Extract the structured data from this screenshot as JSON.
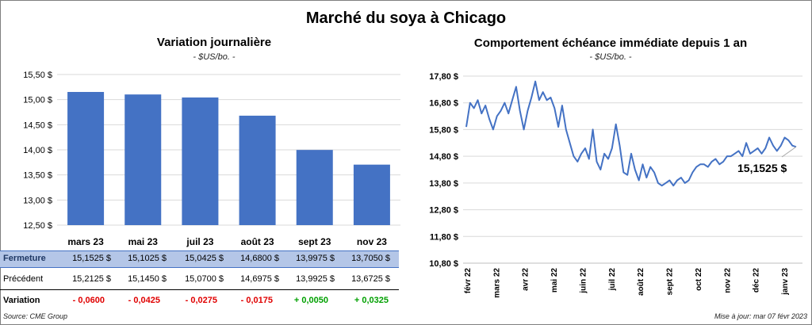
{
  "title": "Marché du soya à Chicago",
  "left": {
    "title": "Variation  journalière",
    "unit": "- $US/bo. -",
    "table": {
      "row_labels": [
        "Fermeture",
        "Précédent",
        "Variation"
      ],
      "fermeture": [
        "15,1525  $",
        "15,1025  $",
        "15,0425  $",
        "14,6800  $",
        "13,9975  $",
        "13,7050  $"
      ],
      "precedent": [
        "15,2125  $",
        "15,1450  $",
        "15,0700  $",
        "14,6975  $",
        "13,9925  $",
        "13,6725  $"
      ],
      "variation": [
        "- 0,0600",
        "- 0,0425",
        "- 0,0275",
        "- 0,0175",
        "+ 0,0050",
        "+ 0,0325"
      ],
      "variation_colors": [
        "#e00000",
        "#e00000",
        "#e00000",
        "#e00000",
        "#00a000",
        "#00a000"
      ]
    }
  },
  "right": {
    "title": "Comportement  échéance immédiate depuis 1 an",
    "unit": "- $US/bo. -",
    "last_label": "15,1525 $"
  },
  "footer": {
    "source": "Source: CME Group",
    "updated": "Mise à jour: mar 07 févr 2023"
  },
  "colors": {
    "bar": "#4472c4",
    "line": "#4472c4",
    "grid": "#d9d9d9"
  },
  "chart_data": [
    {
      "type": "bar",
      "categories": [
        "mars 23",
        "mai 23",
        "juil 23",
        "août 23",
        "sept 23",
        "nov 23"
      ],
      "values": [
        15.1525,
        15.1025,
        15.0425,
        14.68,
        13.9975,
        13.705
      ],
      "ylim": [
        12.5,
        15.5
      ],
      "yticks": [
        "12,50 $",
        "13,00 $",
        "13,50 $",
        "14,00 $",
        "14,50 $",
        "15,00 $",
        "15,50 $"
      ],
      "grid": true
    },
    {
      "type": "line",
      "x_labels": [
        "févr 22",
        "mars 22",
        "avr 22",
        "mai 22",
        "juin 22",
        "juil 22",
        "août 22",
        "sept 22",
        "oct 22",
        "nov 22",
        "déc 22",
        "janv 23"
      ],
      "ylim": [
        10.8,
        17.8
      ],
      "yticks": [
        "10,80 $",
        "11,80 $",
        "12,80 $",
        "13,80 $",
        "14,80 $",
        "15,80 $",
        "16,80 $",
        "17,80 $"
      ],
      "values": [
        15.9,
        16.8,
        16.6,
        16.9,
        16.4,
        16.7,
        16.2,
        15.8,
        16.3,
        16.5,
        16.8,
        16.4,
        16.9,
        17.4,
        16.5,
        15.8,
        16.5,
        17.0,
        17.6,
        16.9,
        17.2,
        16.9,
        17.0,
        16.6,
        15.9,
        16.7,
        15.8,
        15.3,
        14.8,
        14.6,
        14.9,
        15.1,
        14.7,
        15.8,
        14.6,
        14.3,
        14.9,
        14.7,
        15.1,
        16.0,
        15.2,
        14.2,
        14.1,
        14.9,
        14.3,
        13.9,
        14.5,
        14.0,
        14.4,
        14.2,
        13.8,
        13.7,
        13.8,
        13.9,
        13.7,
        13.9,
        14.0,
        13.8,
        13.9,
        14.2,
        14.4,
        14.5,
        14.5,
        14.4,
        14.6,
        14.7,
        14.5,
        14.6,
        14.8,
        14.8,
        14.9,
        15.0,
        14.8,
        15.3,
        14.9,
        15.0,
        15.1,
        14.9,
        15.1,
        15.5,
        15.2,
        15.0,
        15.2,
        15.5,
        15.4,
        15.2,
        15.1525
      ],
      "last_value": 15.1525,
      "grid": true
    }
  ]
}
